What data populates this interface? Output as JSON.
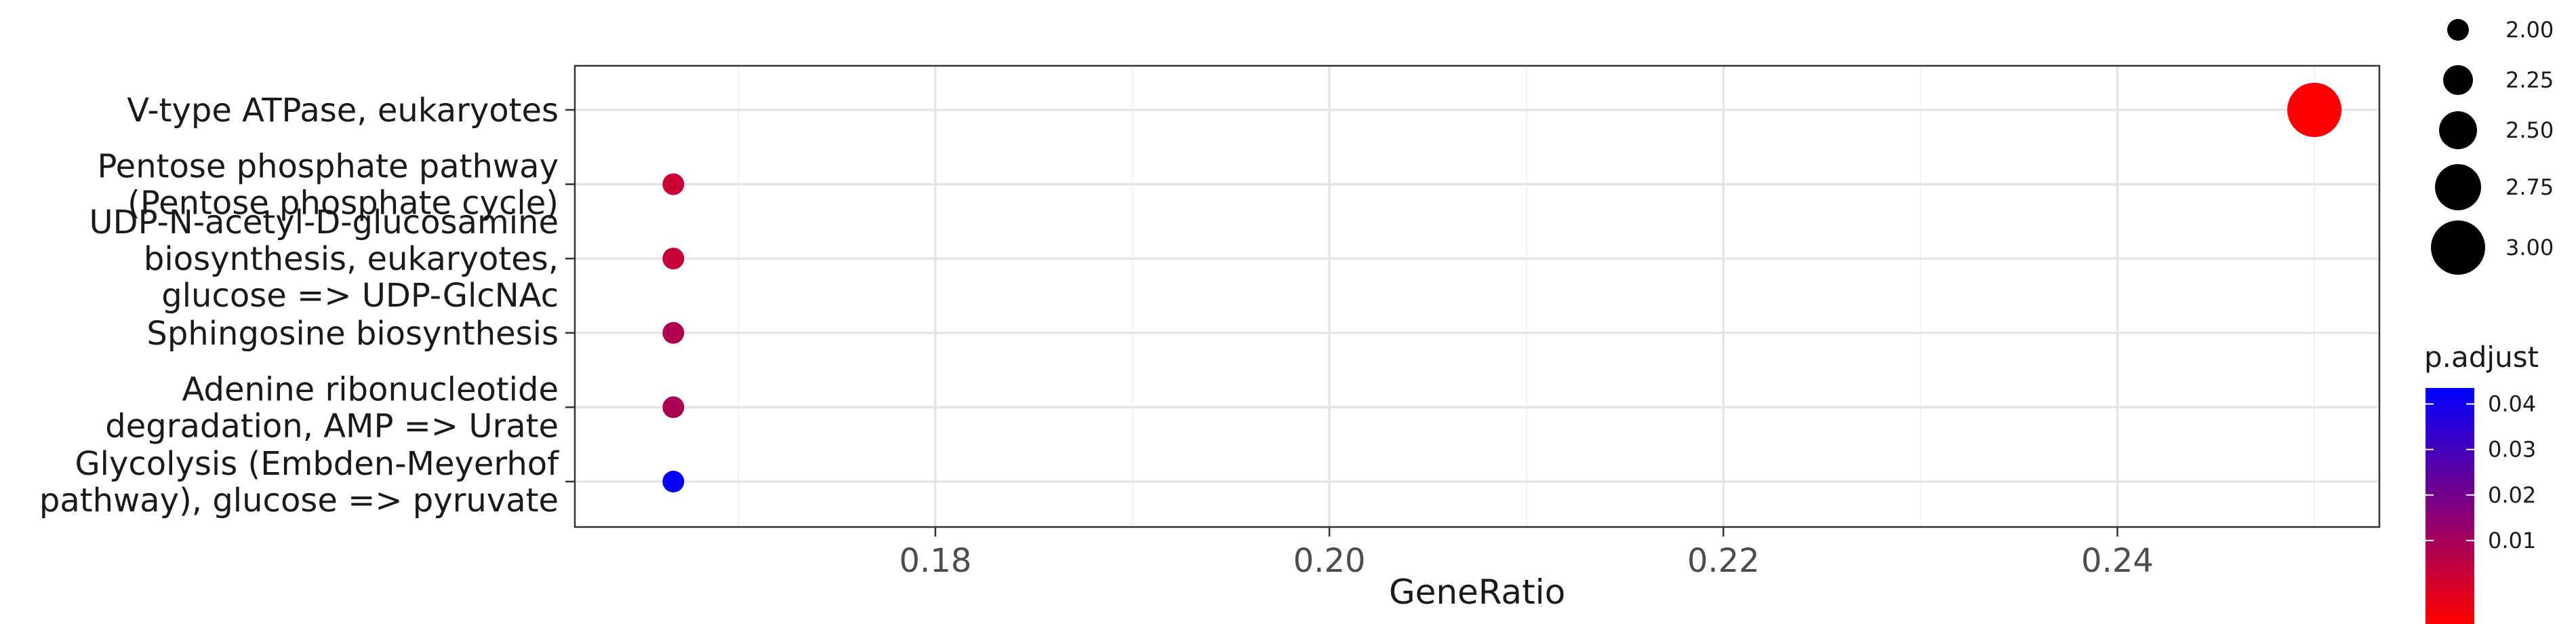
{
  "chart_data": {
    "type": "scatter",
    "title": "",
    "xlabel": "GeneRatio",
    "ylabel": "",
    "xlim": [
      0.1617,
      0.2533
    ],
    "xticks": [
      0.18,
      0.2,
      0.22,
      0.24
    ],
    "xtick_labels": [
      "0.18",
      "0.20",
      "0.22",
      "0.24"
    ],
    "grid": true,
    "categories": [
      {
        "label_lines": [
          "V-type ATPase, eukaryotes"
        ]
      },
      {
        "label_lines": [
          "Pentose phosphate pathway",
          "(Pentose phosphate cycle)"
        ]
      },
      {
        "label_lines": [
          "UDP-N-acetyl-D-glucosamine",
          "biosynthesis, eukaryotes,",
          "glucose => UDP-GlcNAc"
        ]
      },
      {
        "label_lines": [
          "Sphingosine biosynthesis"
        ]
      },
      {
        "label_lines": [
          "Adenine ribonucleotide",
          "degradation, AMP => Urate"
        ]
      },
      {
        "label_lines": [
          "Glycolysis (Embden-Meyerhof",
          "pathway), glucose => pyruvate"
        ]
      }
    ],
    "points": [
      {
        "category_index": 0,
        "x": 0.25,
        "count": 3,
        "p_adjust": 0.0002
      },
      {
        "category_index": 1,
        "x": 0.1667,
        "count": 2,
        "p_adjust": 0.01
      },
      {
        "category_index": 2,
        "x": 0.1667,
        "count": 2,
        "p_adjust": 0.011
      },
      {
        "category_index": 3,
        "x": 0.1667,
        "count": 2,
        "p_adjust": 0.015
      },
      {
        "category_index": 4,
        "x": 0.1667,
        "count": 2,
        "p_adjust": 0.016
      },
      {
        "category_index": 5,
        "x": 0.1667,
        "count": 2,
        "p_adjust": 0.048
      }
    ],
    "size_legend": {
      "placement": "top-right",
      "values": [
        2.0,
        2.25,
        2.5,
        2.75,
        3.0
      ],
      "labels": [
        "2.00",
        "2.25",
        "2.50",
        "2.75",
        "3.00"
      ]
    },
    "color_legend": {
      "title": "p.adjust",
      "placement": "right",
      "range": [
        0.0,
        0.049
      ],
      "ticks": [
        0.01,
        0.02,
        0.03,
        0.04
      ],
      "tick_labels": [
        "0.01",
        "0.02",
        "0.03",
        "0.04"
      ],
      "low_color": "#ff0000",
      "high_color": "#0000ff"
    }
  }
}
